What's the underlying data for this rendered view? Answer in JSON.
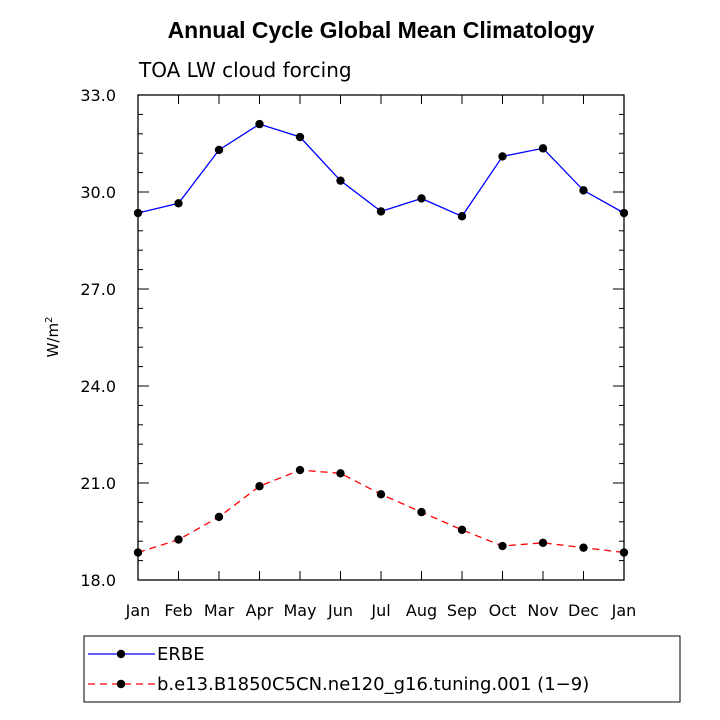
{
  "chart_data": {
    "type": "line",
    "title": "Annual Cycle Global Mean Climatology",
    "subtitle": "TOA LW cloud forcing",
    "xlabel": "",
    "ylabel": "W/m",
    "ylabel_superscript": "2",
    "categories": [
      "Jan",
      "Feb",
      "Mar",
      "Apr",
      "May",
      "Jun",
      "Jul",
      "Aug",
      "Sep",
      "Oct",
      "Nov",
      "Dec",
      "Jan"
    ],
    "ylim": [
      18.0,
      33.0
    ],
    "yticks": [
      "18.0",
      "21.0",
      "24.0",
      "27.0",
      "30.0",
      "33.0"
    ],
    "grid": false,
    "legend_position": "bottom",
    "series": [
      {
        "name": "ERBE",
        "color": "#0000ff",
        "dash": "solid",
        "values": [
          29.35,
          29.65,
          31.3,
          32.1,
          31.7,
          30.35,
          29.4,
          29.8,
          29.25,
          31.1,
          31.35,
          30.05,
          29.35
        ]
      },
      {
        "name": "b.e13.B1850C5CN.ne120_g16.tuning.001 (1−9)",
        "color": "#ff0000",
        "dash": "dashed",
        "values": [
          18.85,
          19.25,
          19.95,
          20.9,
          21.4,
          21.3,
          20.65,
          20.1,
          19.55,
          19.05,
          19.15,
          19.0,
          18.85
        ]
      }
    ]
  }
}
